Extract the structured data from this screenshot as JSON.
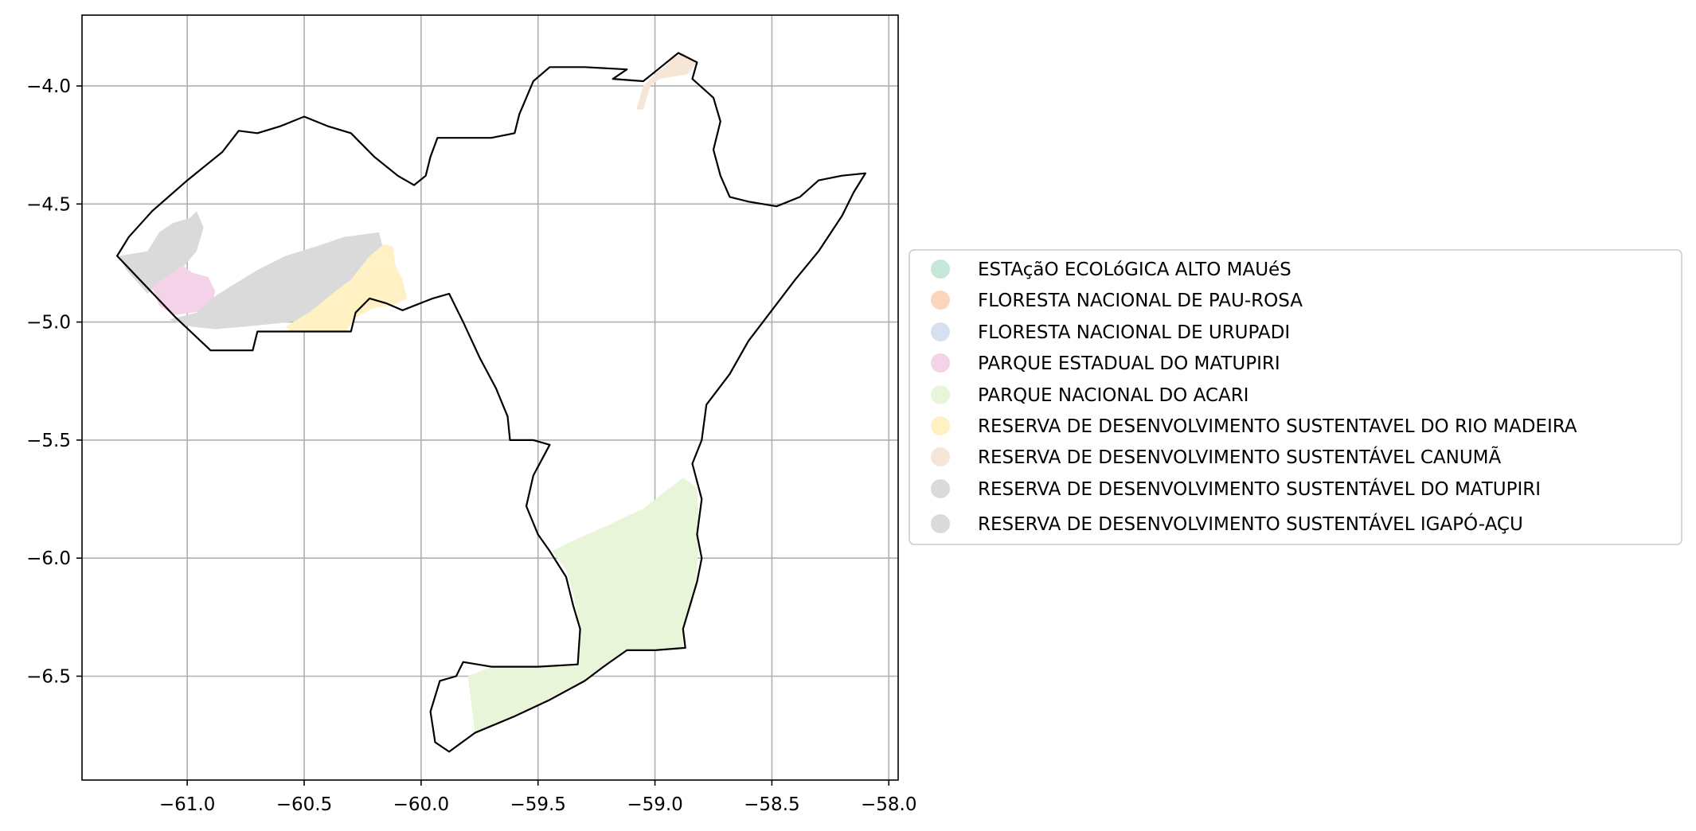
{
  "map": {
    "xlim": [
      -61.45,
      -57.96
    ],
    "ylim": [
      -6.94,
      -3.7
    ],
    "grid": true,
    "x_ticks": [
      {
        "value": -61.0,
        "label": "−61.0"
      },
      {
        "value": -60.5,
        "label": "−60.5"
      },
      {
        "value": -60.0,
        "label": "−60.0"
      },
      {
        "value": -59.5,
        "label": "−59.5"
      },
      {
        "value": -59.0,
        "label": "−59.0"
      },
      {
        "value": -58.5,
        "label": "−58.5"
      },
      {
        "value": -58.0,
        "label": "−58.0"
      }
    ],
    "y_ticks": [
      {
        "value": -4.0,
        "label": "−4.0"
      },
      {
        "value": -4.5,
        "label": "−4.5"
      },
      {
        "value": -5.0,
        "label": "−5.0"
      },
      {
        "value": -5.5,
        "label": "−5.5"
      },
      {
        "value": -6.0,
        "label": "−6.0"
      },
      {
        "value": -6.5,
        "label": "−6.5"
      }
    ],
    "legend_position": "right",
    "legend": [
      {
        "label": "ESTAçãO ECOLóGICA ALTO MAUéS",
        "color": "#c7e8d8"
      },
      {
        "label": "FLORESTA NACIONAL DE PAU-ROSA",
        "color": "#fcd5bd"
      },
      {
        "label": "FLORESTA NACIONAL DE URUPADI",
        "color": "#d7dff0"
      },
      {
        "label": "PARQUE ESTADUAL DO MATUPIRI",
        "color": "#f4d3e8"
      },
      {
        "label": "PARQUE NACIONAL DO ACARI",
        "color": "#e9f5d9"
      },
      {
        "label": "RESERVA DE DESENVOLVIMENTO SUSTENTAVEL DO RIO MADEIRA",
        "color": "#fff1c4"
      },
      {
        "label": "RESERVA DE DESENVOLVIMENTO SUSTENTÁVEL CANUMÃ",
        "color": "#f5e6d8"
      },
      {
        "label": "RESERVA DE DESENVOLVIMENTO SUSTENTÁVEL DO MATUPIRI",
        "color": "#dadada"
      },
      {
        "label": "RESERVA DE DESENVOLVIMENTO SUSTENTÁVEL IGAPÓ-AÇU",
        "color": "#dadada"
      }
    ],
    "regions": [
      {
        "name": "RESERVA DE DESENVOLVIMENTO SUSTENTÁVEL IGAPÓ-AÇU",
        "color": "#dadada",
        "coords": [
          [
            -61.29,
            -4.72
          ],
          [
            -61.17,
            -4.7
          ],
          [
            -61.12,
            -4.62
          ],
          [
            -61.06,
            -4.58
          ],
          [
            -60.99,
            -4.56
          ],
          [
            -60.96,
            -4.53
          ],
          [
            -60.93,
            -4.6
          ],
          [
            -60.96,
            -4.7
          ],
          [
            -61.02,
            -4.77
          ],
          [
            -61.1,
            -4.82
          ],
          [
            -61.17,
            -4.88
          ],
          [
            -61.26,
            -4.78
          ]
        ]
      },
      {
        "name": "PARQUE ESTADUAL DO MATUPIRI",
        "color": "#f4d3e8",
        "coords": [
          [
            -61.15,
            -4.85
          ],
          [
            -61.08,
            -4.8
          ],
          [
            -61.02,
            -4.76
          ],
          [
            -60.98,
            -4.79
          ],
          [
            -60.91,
            -4.81
          ],
          [
            -60.88,
            -4.87
          ],
          [
            -60.9,
            -4.95
          ],
          [
            -60.98,
            -4.96
          ],
          [
            -61.06,
            -4.97
          ],
          [
            -61.12,
            -4.93
          ]
        ]
      },
      {
        "name": "RESERVA DE DESENVOLVIMENTO SUSTENTÁVEL DO MATUPIRI",
        "color": "#dadada",
        "coords": [
          [
            -61.08,
            -4.99
          ],
          [
            -60.96,
            -4.96
          ],
          [
            -60.88,
            -4.89
          ],
          [
            -60.8,
            -4.84
          ],
          [
            -60.7,
            -4.78
          ],
          [
            -60.58,
            -4.72
          ],
          [
            -60.45,
            -4.68
          ],
          [
            -60.33,
            -4.64
          ],
          [
            -60.18,
            -4.62
          ],
          [
            -60.16,
            -4.7
          ],
          [
            -60.22,
            -4.78
          ],
          [
            -60.3,
            -4.85
          ],
          [
            -60.36,
            -4.93
          ],
          [
            -60.45,
            -4.97
          ],
          [
            -60.56,
            -5.0
          ],
          [
            -60.66,
            -5.01
          ],
          [
            -60.76,
            -5.02
          ],
          [
            -60.88,
            -5.03
          ],
          [
            -60.98,
            -5.02
          ]
        ]
      },
      {
        "name": "RESERVA DE DESENVOLVIMENTO SUSTENTAVEL DO RIO MADEIRA",
        "color": "#fff1c4",
        "coords": [
          [
            -60.58,
            -5.02
          ],
          [
            -60.48,
            -4.96
          ],
          [
            -60.38,
            -4.88
          ],
          [
            -60.3,
            -4.82
          ],
          [
            -60.22,
            -4.72
          ],
          [
            -60.16,
            -4.67
          ],
          [
            -60.12,
            -4.68
          ],
          [
            -60.11,
            -4.76
          ],
          [
            -60.08,
            -4.82
          ],
          [
            -60.06,
            -4.9
          ],
          [
            -60.12,
            -4.93
          ],
          [
            -60.2,
            -4.94
          ],
          [
            -60.28,
            -4.98
          ],
          [
            -60.32,
            -5.04
          ],
          [
            -60.44,
            -5.04
          ],
          [
            -60.56,
            -5.04
          ]
        ]
      },
      {
        "name": "RESERVA DE DESENVOLVIMENTO SUSTENTÁVEL CANUMÃ",
        "color": "#f5e6d8",
        "coords": [
          [
            -59.08,
            -4.1
          ],
          [
            -59.05,
            -4.0
          ],
          [
            -59.0,
            -3.95
          ],
          [
            -58.96,
            -3.92
          ],
          [
            -58.92,
            -3.88
          ],
          [
            -58.88,
            -3.86
          ],
          [
            -58.82,
            -3.9
          ],
          [
            -58.86,
            -3.95
          ],
          [
            -58.92,
            -3.96
          ],
          [
            -58.98,
            -3.97
          ],
          [
            -59.02,
            -4.0
          ],
          [
            -59.05,
            -4.1
          ]
        ]
      },
      {
        "name": "PARQUE NACIONAL DO ACARI",
        "color": "#e9f5d9",
        "coords": [
          [
            -59.44,
            -5.97
          ],
          [
            -59.36,
            -5.93
          ],
          [
            -59.2,
            -5.86
          ],
          [
            -59.05,
            -5.79
          ],
          [
            -58.88,
            -5.66
          ],
          [
            -58.82,
            -5.7
          ],
          [
            -58.81,
            -5.9
          ],
          [
            -58.82,
            -6.05
          ],
          [
            -58.84,
            -6.2
          ],
          [
            -58.88,
            -6.3
          ],
          [
            -58.88,
            -6.38
          ],
          [
            -59.0,
            -6.39
          ],
          [
            -59.12,
            -6.39
          ],
          [
            -59.22,
            -6.46
          ],
          [
            -59.3,
            -6.52
          ],
          [
            -59.45,
            -6.6
          ],
          [
            -59.6,
            -6.67
          ],
          [
            -59.77,
            -6.74
          ],
          [
            -59.8,
            -6.5
          ],
          [
            -59.7,
            -6.46
          ],
          [
            -59.5,
            -6.46
          ],
          [
            -59.33,
            -6.45
          ],
          [
            -59.32,
            -6.3
          ],
          [
            -59.35,
            -6.15
          ],
          [
            -59.38,
            -6.05
          ]
        ]
      }
    ],
    "boundary": [
      [
        -61.3,
        -4.72
      ],
      [
        -61.25,
        -4.64
      ],
      [
        -61.15,
        -4.53
      ],
      [
        -61.0,
        -4.4
      ],
      [
        -60.85,
        -4.28
      ],
      [
        -60.78,
        -4.19
      ],
      [
        -60.7,
        -4.2
      ],
      [
        -60.6,
        -4.17
      ],
      [
        -60.5,
        -4.13
      ],
      [
        -60.4,
        -4.17
      ],
      [
        -60.3,
        -4.2
      ],
      [
        -60.2,
        -4.3
      ],
      [
        -60.1,
        -4.38
      ],
      [
        -60.03,
        -4.42
      ],
      [
        -59.98,
        -4.38
      ],
      [
        -59.96,
        -4.3
      ],
      [
        -59.93,
        -4.22
      ],
      [
        -59.8,
        -4.22
      ],
      [
        -59.7,
        -4.22
      ],
      [
        -59.6,
        -4.2
      ],
      [
        -59.58,
        -4.12
      ],
      [
        -59.55,
        -4.05
      ],
      [
        -59.52,
        -3.98
      ],
      [
        -59.45,
        -3.92
      ],
      [
        -59.3,
        -3.92
      ],
      [
        -59.12,
        -3.93
      ],
      [
        -59.18,
        -3.97
      ],
      [
        -59.05,
        -3.98
      ],
      [
        -59.0,
        -3.94
      ],
      [
        -58.9,
        -3.86
      ],
      [
        -58.82,
        -3.9
      ],
      [
        -58.84,
        -3.97
      ],
      [
        -58.75,
        -4.05
      ],
      [
        -58.72,
        -4.15
      ],
      [
        -58.75,
        -4.27
      ],
      [
        -58.72,
        -4.38
      ],
      [
        -58.68,
        -4.47
      ],
      [
        -58.6,
        -4.49
      ],
      [
        -58.48,
        -4.51
      ],
      [
        -58.38,
        -4.47
      ],
      [
        -58.3,
        -4.4
      ],
      [
        -58.2,
        -4.38
      ],
      [
        -58.1,
        -4.37
      ],
      [
        -58.15,
        -4.45
      ],
      [
        -58.2,
        -4.55
      ],
      [
        -58.3,
        -4.7
      ],
      [
        -58.4,
        -4.82
      ],
      [
        -58.5,
        -4.95
      ],
      [
        -58.6,
        -5.08
      ],
      [
        -58.68,
        -5.22
      ],
      [
        -58.78,
        -5.35
      ],
      [
        -58.8,
        -5.5
      ],
      [
        -58.84,
        -5.6
      ],
      [
        -58.8,
        -5.75
      ],
      [
        -58.82,
        -5.9
      ],
      [
        -58.8,
        -6.0
      ],
      [
        -58.82,
        -6.1
      ],
      [
        -58.85,
        -6.2
      ],
      [
        -58.88,
        -6.3
      ],
      [
        -58.87,
        -6.38
      ],
      [
        -59.0,
        -6.39
      ],
      [
        -59.12,
        -6.39
      ],
      [
        -59.22,
        -6.46
      ],
      [
        -59.3,
        -6.52
      ],
      [
        -59.45,
        -6.6
      ],
      [
        -59.6,
        -6.67
      ],
      [
        -59.77,
        -6.74
      ],
      [
        -59.88,
        -6.82
      ],
      [
        -59.94,
        -6.78
      ],
      [
        -59.96,
        -6.65
      ],
      [
        -59.92,
        -6.52
      ],
      [
        -59.85,
        -6.5
      ],
      [
        -59.82,
        -6.44
      ],
      [
        -59.7,
        -6.46
      ],
      [
        -59.5,
        -6.46
      ],
      [
        -59.33,
        -6.45
      ],
      [
        -59.32,
        -6.3
      ],
      [
        -59.35,
        -6.2
      ],
      [
        -59.38,
        -6.08
      ],
      [
        -59.45,
        -5.97
      ],
      [
        -59.5,
        -5.9
      ],
      [
        -59.55,
        -5.78
      ],
      [
        -59.52,
        -5.65
      ],
      [
        -59.45,
        -5.52
      ],
      [
        -59.52,
        -5.5
      ],
      [
        -59.62,
        -5.5
      ],
      [
        -59.63,
        -5.4
      ],
      [
        -59.68,
        -5.28
      ],
      [
        -59.75,
        -5.15
      ],
      [
        -59.82,
        -5.0
      ],
      [
        -59.88,
        -4.88
      ],
      [
        -59.95,
        -4.9
      ],
      [
        -60.08,
        -4.95
      ],
      [
        -60.15,
        -4.92
      ],
      [
        -60.22,
        -4.9
      ],
      [
        -60.28,
        -4.96
      ],
      [
        -60.3,
        -5.04
      ],
      [
        -60.5,
        -5.04
      ],
      [
        -60.7,
        -5.04
      ],
      [
        -60.72,
        -5.12
      ],
      [
        -60.9,
        -5.12
      ],
      [
        -61.05,
        -4.98
      ],
      [
        -61.3,
        -4.72
      ]
    ]
  }
}
